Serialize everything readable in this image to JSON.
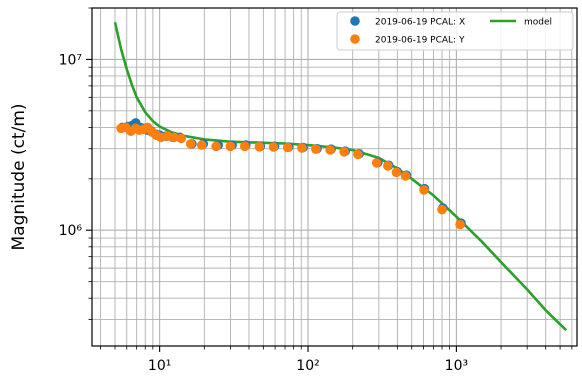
{
  "chart_data": {
    "type": "scatter",
    "ylabel": "Magnitude (ct/m)",
    "xlabel": "",
    "xscale": "log",
    "yscale": "log",
    "xlim": [
      3.5,
      6500
    ],
    "ylim": [
      210000,
      20000000
    ],
    "grid": "both-major-minor",
    "legend_location": "top-right",
    "x_ticks": [
      {
        "value": 10,
        "label": "10¹"
      },
      {
        "value": 100,
        "label": "10²"
      },
      {
        "value": 1000,
        "label": "10³"
      }
    ],
    "y_ticks": [
      {
        "value": 1000000,
        "label": "10⁶"
      },
      {
        "value": 10000000,
        "label": "10⁷"
      }
    ],
    "series": [
      {
        "name": "2019-06-19 PCAL: X",
        "kind": "scatter",
        "color": "#1f77b4",
        "points": [
          [
            5.6,
            4000000
          ],
          [
            6.1,
            4050000
          ],
          [
            6.5,
            4100000
          ],
          [
            6.9,
            4250000
          ],
          [
            7.4,
            4000000
          ],
          [
            7.8,
            3950000
          ],
          [
            8.3,
            3850000
          ],
          [
            8.8,
            3800000
          ],
          [
            9.4,
            3650000
          ],
          [
            10.0,
            3600000
          ],
          [
            11.0,
            3550000
          ],
          [
            12.3,
            3500000
          ],
          [
            13.7,
            3500000
          ],
          [
            16.5,
            3200000
          ],
          [
            19.7,
            3200000
          ],
          [
            24.8,
            3150000
          ],
          [
            30.8,
            3150000
          ],
          [
            38.1,
            3150000
          ],
          [
            47.7,
            3100000
          ],
          [
            59.5,
            3100000
          ],
          [
            74.0,
            3070000
          ],
          [
            92.5,
            3050000
          ],
          [
            115,
            3000000
          ],
          [
            143,
            2980000
          ],
          [
            178,
            2900000
          ],
          [
            221,
            2800000
          ],
          [
            296,
            2500000
          ],
          [
            350,
            2400000
          ],
          [
            399,
            2200000
          ],
          [
            460,
            2100000
          ],
          [
            610,
            1750000
          ],
          [
            810,
            1350000
          ],
          [
            1074,
            1100000
          ]
        ]
      },
      {
        "name": "2019-06-19 PCAL: Y",
        "kind": "scatter",
        "color": "#ff7f0e",
        "points": [
          [
            5.5,
            3950000
          ],
          [
            5.9,
            4000000
          ],
          [
            6.4,
            3800000
          ],
          [
            6.9,
            3950000
          ],
          [
            7.3,
            3850000
          ],
          [
            7.8,
            3900000
          ],
          [
            8.3,
            4000000
          ],
          [
            8.9,
            3750000
          ],
          [
            9.5,
            3600000
          ],
          [
            10.2,
            3500000
          ],
          [
            11.3,
            3550000
          ],
          [
            12.5,
            3500000
          ],
          [
            14.0,
            3450000
          ],
          [
            16.2,
            3200000
          ],
          [
            19.2,
            3150000
          ],
          [
            24.0,
            3100000
          ],
          [
            30.0,
            3100000
          ],
          [
            37.5,
            3100000
          ],
          [
            47.0,
            3080000
          ],
          [
            58.5,
            3070000
          ],
          [
            73.0,
            3050000
          ],
          [
            91.0,
            3030000
          ],
          [
            113,
            2980000
          ],
          [
            141,
            2950000
          ],
          [
            175,
            2880000
          ],
          [
            217,
            2780000
          ],
          [
            290,
            2480000
          ],
          [
            345,
            2380000
          ],
          [
            394,
            2180000
          ],
          [
            455,
            2080000
          ],
          [
            605,
            1720000
          ],
          [
            800,
            1320000
          ],
          [
            1060,
            1080000
          ]
        ]
      },
      {
        "name": "model",
        "kind": "line",
        "color": "#2ca02c",
        "points": [
          [
            5.0,
            16500000
          ],
          [
            5.5,
            11500000
          ],
          [
            6.0,
            8800000
          ],
          [
            6.5,
            7100000
          ],
          [
            7.0,
            6000000
          ],
          [
            8.0,
            4900000
          ],
          [
            9.0,
            4350000
          ],
          [
            10.0,
            4050000
          ],
          [
            12.0,
            3750000
          ],
          [
            15.0,
            3550000
          ],
          [
            20.0,
            3400000
          ],
          [
            30.0,
            3300000
          ],
          [
            50.0,
            3250000
          ],
          [
            70.0,
            3220000
          ],
          [
            100.0,
            3150000
          ],
          [
            150,
            3050000
          ],
          [
            200,
            2950000
          ],
          [
            300,
            2650000
          ],
          [
            400,
            2300000
          ],
          [
            500,
            2000000
          ],
          [
            700,
            1600000
          ],
          [
            1000,
            1200000
          ],
          [
            1500,
            850000
          ],
          [
            2000,
            650000
          ],
          [
            3000,
            450000
          ],
          [
            4000,
            340000
          ],
          [
            5500,
            260000
          ]
        ]
      }
    ]
  }
}
